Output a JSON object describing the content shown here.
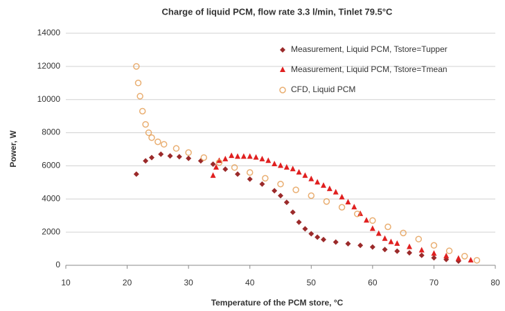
{
  "chart_data": {
    "type": "scatter",
    "title": "Charge of liquid PCM, flow rate 3.3 l/min, Tinlet  79.5°C",
    "x_label": "Temperature of the PCM store, °C",
    "y_label": "Power,  W",
    "xlim": [
      10,
      80
    ],
    "xticks": [
      10,
      20,
      30,
      40,
      50,
      60,
      70,
      80
    ],
    "ylim": [
      0,
      14000
    ],
    "yticks": [
      0,
      2000,
      4000,
      6000,
      8000,
      10000,
      12000,
      14000
    ],
    "grid": true,
    "legend": "upper right",
    "series": [
      {
        "name": "Measurement, Liquid PCM, Tstore=Tupper",
        "color": "#9b2a2a",
        "marker": "diamond",
        "x": [
          21.5,
          23,
          24,
          25.5,
          27,
          28.5,
          30,
          32,
          34,
          36,
          38,
          40,
          42,
          44,
          45,
          46,
          47,
          48,
          49,
          50,
          51,
          52,
          54,
          56,
          58,
          60,
          62,
          64,
          66,
          68,
          70,
          72,
          74
        ],
        "values": [
          5500,
          6300,
          6500,
          6700,
          6600,
          6550,
          6450,
          6300,
          6100,
          5800,
          5500,
          5200,
          4900,
          4500,
          4200,
          3800,
          3200,
          2600,
          2200,
          1900,
          1700,
          1550,
          1400,
          1300,
          1200,
          1100,
          950,
          850,
          750,
          600,
          450,
          350,
          250
        ]
      },
      {
        "name": "Measurement, Liquid PCM, Tstore=Tmean",
        "color": "#e02020",
        "marker": "triangle",
        "x": [
          34,
          34.5,
          35,
          36,
          37,
          38,
          39,
          40,
          41,
          42,
          43,
          44,
          45,
          46,
          47,
          48,
          49,
          50,
          51,
          52,
          53,
          54,
          55,
          56,
          57,
          58,
          59,
          60,
          61,
          62,
          63,
          64,
          66,
          68,
          70,
          72,
          74,
          76
        ],
        "values": [
          5400,
          5900,
          6300,
          6400,
          6600,
          6550,
          6550,
          6550,
          6500,
          6400,
          6300,
          6100,
          6000,
          5900,
          5800,
          5600,
          5400,
          5200,
          5000,
          4800,
          4600,
          4400,
          4100,
          3800,
          3500,
          3100,
          2700,
          2200,
          1900,
          1600,
          1400,
          1300,
          1100,
          900,
          700,
          550,
          400,
          300
        ]
      },
      {
        "name": "CFD, Liquid PCM",
        "color": "#e39a4e",
        "marker": "circle",
        "x": [
          21.5,
          21.8,
          22.1,
          22.5,
          23,
          23.5,
          24,
          25,
          26,
          28,
          30,
          32.5,
          35,
          37.5,
          40,
          42.5,
          45,
          47.5,
          50,
          52.5,
          55,
          57.5,
          60,
          62.5,
          65,
          67.5,
          70,
          72.5,
          75,
          77
        ],
        "values": [
          12000,
          11000,
          10200,
          9300,
          8500,
          8000,
          7700,
          7450,
          7300,
          7050,
          6800,
          6500,
          6200,
          5900,
          5600,
          5250,
          4900,
          4550,
          4200,
          3850,
          3500,
          3100,
          2700,
          2320,
          1950,
          1580,
          1200,
          870,
          550,
          300
        ]
      }
    ]
  }
}
